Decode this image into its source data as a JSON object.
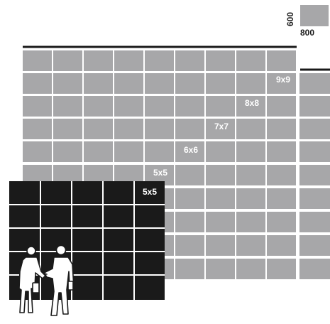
{
  "legend": {
    "module_width": "800",
    "module_height": "600"
  },
  "grid_labels": [
    "9x9",
    "8x8",
    "7x7",
    "6x6",
    "5x5"
  ],
  "overlay_label": "5x5",
  "figures_icon": "businessmen-handshake-icon",
  "colors": {
    "gray_tile": "#a7a7a9",
    "dark_tile": "#1a1a1a",
    "line": "#1a1a1a"
  }
}
